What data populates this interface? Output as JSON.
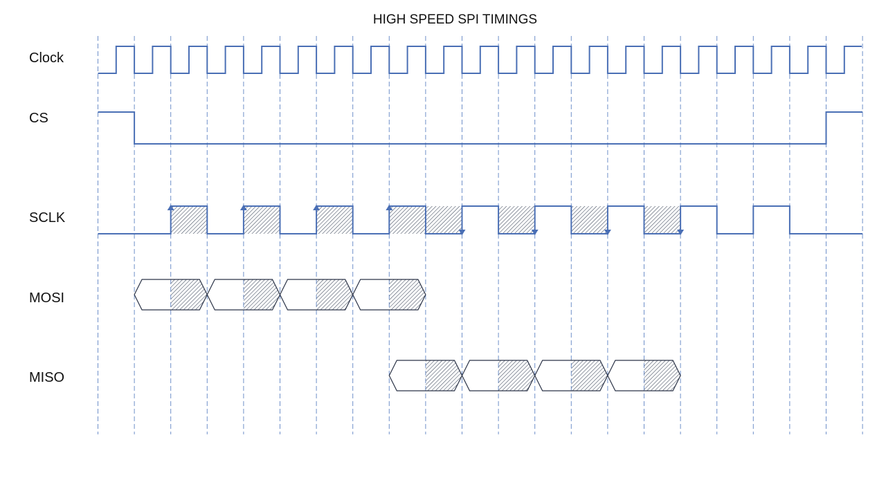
{
  "title": "HIGH SPEED SPI TIMINGS",
  "signals": [
    {
      "id": "clock",
      "label": "Clock"
    },
    {
      "id": "cs",
      "label": "CS"
    },
    {
      "id": "sclk",
      "label": "SCLK"
    },
    {
      "id": "mosi",
      "label": "MOSI"
    },
    {
      "id": "miso",
      "label": "MISO"
    }
  ],
  "timing": {
    "gridlines": 22,
    "clock_waveform": [
      0,
      1,
      0,
      1,
      0,
      1,
      0,
      1,
      0,
      1,
      0,
      1,
      0,
      1,
      0,
      1,
      0,
      1,
      0,
      1,
      0,
      1,
      0,
      1,
      0,
      1,
      0,
      1,
      0,
      1,
      0,
      1,
      0,
      1,
      0,
      1,
      0,
      1,
      0,
      1,
      0,
      1
    ],
    "cs_waveform": [
      1,
      0,
      0,
      0,
      0,
      0,
      0,
      0,
      0,
      0,
      0,
      0,
      0,
      0,
      0,
      0,
      0,
      0,
      0,
      0,
      1
    ],
    "sclk_waveform": [
      0,
      0,
      1,
      0,
      1,
      0,
      1,
      0,
      1,
      0,
      1,
      0,
      1,
      0,
      1,
      0,
      1,
      0,
      1,
      0,
      0
    ],
    "sclk_rising_arrows": [
      2,
      4,
      6,
      8
    ],
    "sclk_falling_arrows": [
      9,
      11,
      13,
      15
    ],
    "sclk_hatched_periods": [
      2,
      4,
      6,
      8,
      9,
      11,
      13,
      15
    ],
    "mosi_bytes_start": [
      1,
      3,
      5,
      7
    ],
    "miso_bytes_start": [
      8,
      10,
      12,
      14
    ]
  },
  "colors": {
    "signal": "#4a6fb5",
    "grid": "#6e8fc9",
    "bus": "#2b3347",
    "hatch": "#3b4659"
  }
}
